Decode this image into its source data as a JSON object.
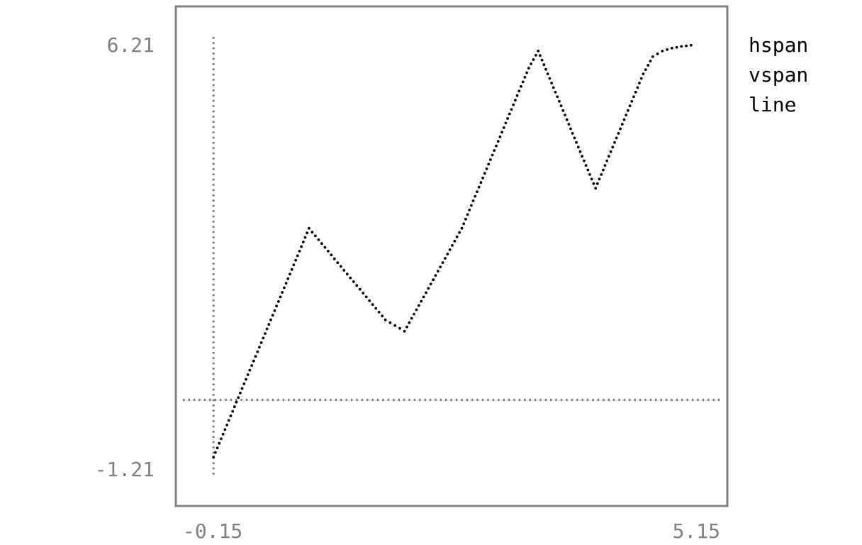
{
  "chart_data": {
    "type": "line",
    "title": "",
    "xlabel": "",
    "ylabel": "",
    "xlim": [
      -0.15,
      5.15
    ],
    "ylim": [
      -1.21,
      6.21
    ],
    "x_ticks": [
      "-0.15",
      "5.15"
    ],
    "y_ticks": [
      "6.21",
      "-1.21"
    ],
    "grid": false,
    "legend": {
      "placement": "right",
      "entries": [
        "hspan",
        "vspan",
        "line"
      ]
    },
    "style": "braille-dot terminal plot",
    "colors": {
      "frame": "#808080",
      "span": "#808080",
      "line": "#000000",
      "tick_text": "#808080",
      "legend_text": "#000000"
    },
    "hspan": {
      "y": 0.0
    },
    "vspan": {
      "x": 0.0
    },
    "series": [
      {
        "name": "line",
        "x": [
          0,
          0.1,
          0.2,
          0.3,
          0.4,
          0.5,
          0.6,
          0.7,
          0.8,
          0.9,
          1.0,
          1.1,
          1.2,
          1.3,
          1.4,
          1.5,
          1.6,
          1.7,
          1.8,
          1.9,
          2.0,
          2.1,
          2.2,
          2.3,
          2.4,
          2.5,
          2.6,
          2.7,
          2.8,
          2.9,
          3.0,
          3.1,
          3.2,
          3.3,
          3.4,
          3.5,
          3.6,
          3.7,
          3.8,
          3.9,
          4.0,
          4.1,
          4.2,
          4.3,
          4.4,
          4.5,
          4.6,
          4.7,
          4.8,
          4.9,
          5.0
        ],
        "y": [
          -1.0,
          -0.6,
          -0.2,
          0.2,
          0.6,
          1.0,
          1.4,
          1.8,
          2.2,
          2.6,
          3.0,
          2.8,
          2.6,
          2.4,
          2.2,
          2.0,
          1.8,
          1.6,
          1.4,
          1.3,
          1.2,
          1.5,
          1.8,
          2.1,
          2.4,
          2.7,
          3.0,
          3.4,
          3.8,
          4.2,
          4.6,
          5.0,
          5.4,
          5.8,
          6.1,
          5.7,
          5.3,
          4.9,
          4.5,
          4.1,
          3.7,
          4.1,
          4.5,
          4.9,
          5.3,
          5.7,
          6.0,
          6.1,
          6.15,
          6.18,
          6.2
        ]
      }
    ]
  }
}
